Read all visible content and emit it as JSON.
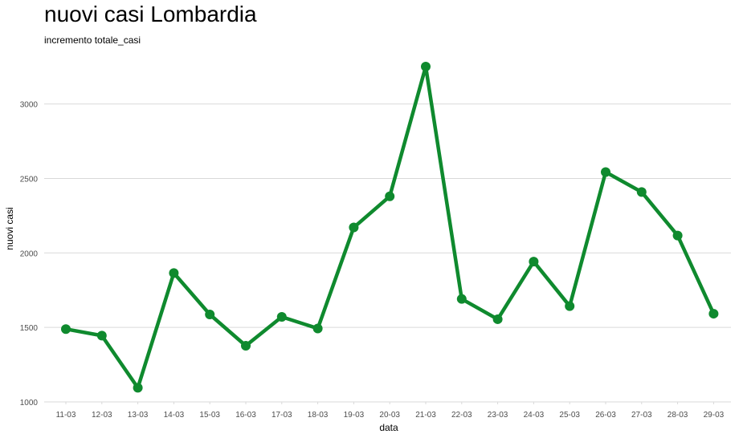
{
  "chart_data": {
    "type": "line",
    "title": "nuovi casi Lombardia",
    "subtitle": "incremento totale_casi",
    "xlabel": "data",
    "ylabel": "nuovi casi",
    "categories": [
      "11-03",
      "12-03",
      "13-03",
      "14-03",
      "15-03",
      "16-03",
      "17-03",
      "18-03",
      "19-03",
      "20-03",
      "21-03",
      "22-03",
      "23-03",
      "24-03",
      "25-03",
      "26-03",
      "27-03",
      "28-03",
      "29-03"
    ],
    "values": [
      1489,
      1445,
      1095,
      1865,
      1587,
      1377,
      1571,
      1493,
      2171,
      2380,
      3251,
      1691,
      1555,
      1942,
      1643,
      2543,
      2409,
      2117,
      1592
    ],
    "yticks": [
      1000,
      1500,
      2000,
      2500,
      3000
    ],
    "ylim": [
      1000,
      3251
    ],
    "grid": true,
    "legend": "none",
    "line_color": "#0f8a2e"
  }
}
